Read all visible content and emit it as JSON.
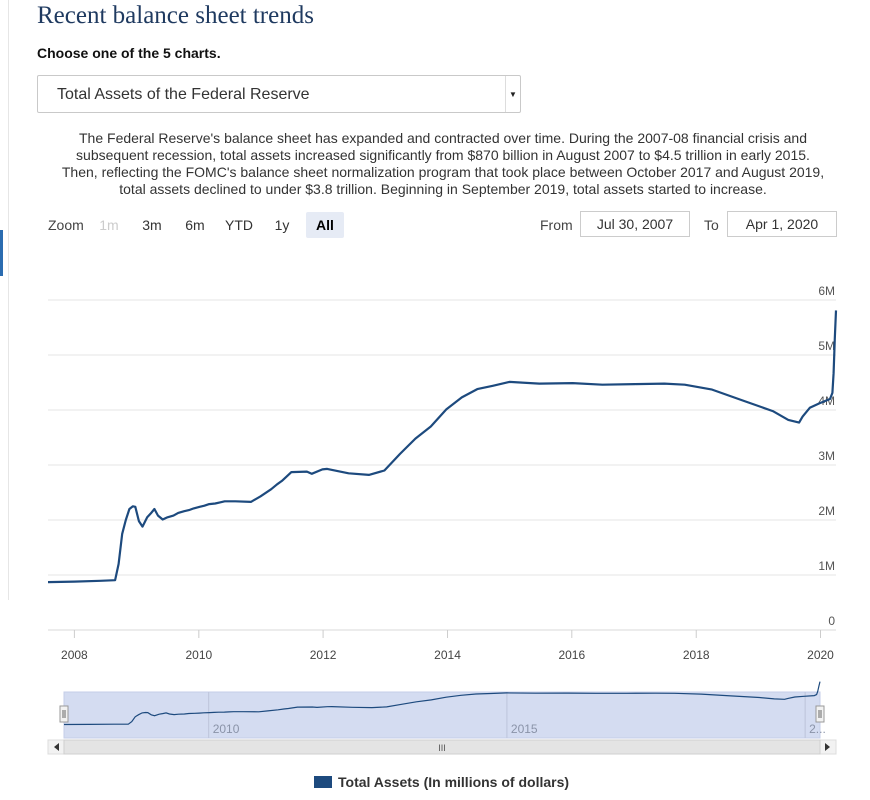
{
  "page": {
    "title": "Recent balance sheet trends",
    "chooser_label": "Choose one of the 5 charts.",
    "selected_chart": "Total Assets of the Federal Reserve",
    "description": "The Federal Reserve's balance sheet has expanded and contracted over time. During the 2007-08 financial crisis and subsequent recession, total assets increased significantly from $870 billion in August 2007 to $4.5 trillion in early 2015. Then, reflecting the FOMC's balance sheet normalization program that took place between October 2017 and August 2019, total assets declined to under $3.8 trillion. Beginning in September 2019, total assets started to increase."
  },
  "controls": {
    "zoom_label": "Zoom",
    "zoom_buttons": [
      "1m",
      "3m",
      "6m",
      "YTD",
      "1y",
      "All"
    ],
    "zoom_active": "All",
    "zoom_disabled": "1m",
    "from_label": "From",
    "from_value": "Jul 30, 2007",
    "to_label": "To",
    "to_value": "Apr 1, 2020"
  },
  "navigator": {
    "tick_labels": [
      "2010",
      "2015",
      "2..."
    ],
    "scroll_grip": "III"
  },
  "colors": {
    "series": "#1d4a7e",
    "navigator_fill": "#d4dcf1",
    "grid": "#e6e6e6"
  },
  "icons": {
    "dropdown": "triangle-down-icon",
    "scroll_left": "triangle-left-icon",
    "scroll_right": "triangle-right-icon"
  },
  "chart_data": {
    "type": "line",
    "title": "",
    "xlabel": "",
    "ylabel": "",
    "x_ticks": [
      "2008",
      "2010",
      "2012",
      "2014",
      "2016",
      "2018",
      "2020"
    ],
    "y_ticks": [
      "0",
      "1M",
      "2M",
      "3M",
      "4M",
      "5M",
      "6M"
    ],
    "xlim": [
      "2007-07-30",
      "2020-04-01"
    ],
    "ylim": [
      0,
      6000000
    ],
    "grid": true,
    "legend_position": "bottom-center",
    "series": [
      {
        "name": "Total Assets (In millions of dollars)",
        "x": [
          "2007-07-30",
          "2007-12-31",
          "2008-06-01",
          "2008-08-27",
          "2008-09-17",
          "2008-10-08",
          "2008-10-29",
          "2008-11-19",
          "2008-12-10",
          "2008-12-24",
          "2009-01-14",
          "2009-02-04",
          "2009-03-04",
          "2009-03-25",
          "2009-04-15",
          "2009-05-06",
          "2009-06-03",
          "2009-07-01",
          "2009-08-05",
          "2009-09-02",
          "2009-10-07",
          "2009-11-04",
          "2009-12-02",
          "2010-01-06",
          "2010-02-03",
          "2010-03-03",
          "2010-04-07",
          "2010-05-05",
          "2010-06-02",
          "2010-08-04",
          "2010-11-03",
          "2010-12-29",
          "2011-03-02",
          "2011-04-06",
          "2011-05-04",
          "2011-06-29",
          "2011-09-28",
          "2011-10-26",
          "2011-12-28",
          "2012-01-25",
          "2012-05-30",
          "2012-09-26",
          "2012-12-26",
          "2013-03-27",
          "2013-06-26",
          "2013-09-25",
          "2013-12-25",
          "2014-03-26",
          "2014-06-25",
          "2014-09-24",
          "2014-12-31",
          "2015-06-24",
          "2016-01-06",
          "2016-06-29",
          "2017-01-04",
          "2017-06-28",
          "2017-10-25",
          "2018-04-04",
          "2018-10-03",
          "2019-03-27",
          "2019-06-26",
          "2019-08-28",
          "2019-09-18",
          "2019-10-30",
          "2019-12-25",
          "2020-02-26",
          "2020-03-11",
          "2020-03-18",
          "2020-03-25",
          "2020-04-01"
        ],
        "y": [
          870000,
          880000,
          895000,
          905000,
          1200000,
          1750000,
          2000000,
          2200000,
          2250000,
          2240000,
          1980000,
          1880000,
          2050000,
          2120000,
          2200000,
          2080000,
          2010000,
          2050000,
          2080000,
          2130000,
          2160000,
          2180000,
          2210000,
          2240000,
          2260000,
          2290000,
          2300000,
          2320000,
          2340000,
          2340000,
          2330000,
          2430000,
          2560000,
          2650000,
          2710000,
          2870000,
          2880000,
          2840000,
          2920000,
          2930000,
          2850000,
          2820000,
          2900000,
          3200000,
          3480000,
          3700000,
          4010000,
          4230000,
          4380000,
          4440000,
          4510000,
          4480000,
          4490000,
          4460000,
          4470000,
          4480000,
          4460000,
          4370000,
          4170000,
          3980000,
          3820000,
          3770000,
          3880000,
          4040000,
          4120000,
          4200000,
          4310000,
          4670000,
          5300000,
          5810000
        ]
      }
    ]
  }
}
